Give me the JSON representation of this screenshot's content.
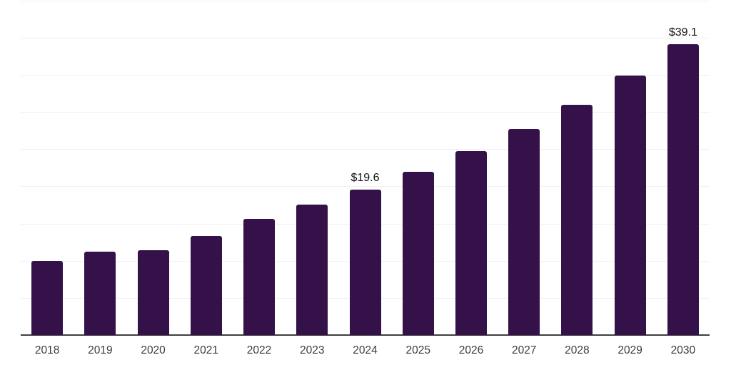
{
  "chart_data": {
    "type": "bar",
    "title": "",
    "xlabel": "",
    "ylabel": "",
    "categories": [
      "2018",
      "2019",
      "2020",
      "2021",
      "2022",
      "2023",
      "2024",
      "2025",
      "2026",
      "2027",
      "2028",
      "2029",
      "2030"
    ],
    "values": [
      10.0,
      11.2,
      11.4,
      13.3,
      15.6,
      17.5,
      19.6,
      22.0,
      24.7,
      27.7,
      31.0,
      34.9,
      39.1
    ],
    "data_labels": [
      "",
      "",
      "",
      "",
      "",
      "",
      "$19.6",
      "",
      "",
      "",
      "",
      "",
      "$39.1"
    ],
    "unit_prefix": "$",
    "ylim": [
      0,
      45
    ],
    "gridline_step": 5,
    "grid": true,
    "legend": false,
    "colors": {
      "bar": "#341149",
      "gridline": "#f0f0f2",
      "axis_line": "#3f3f3f",
      "x_label_text": "#3c3c3c",
      "value_label_text": "#111111",
      "background": "#ffffff"
    }
  }
}
